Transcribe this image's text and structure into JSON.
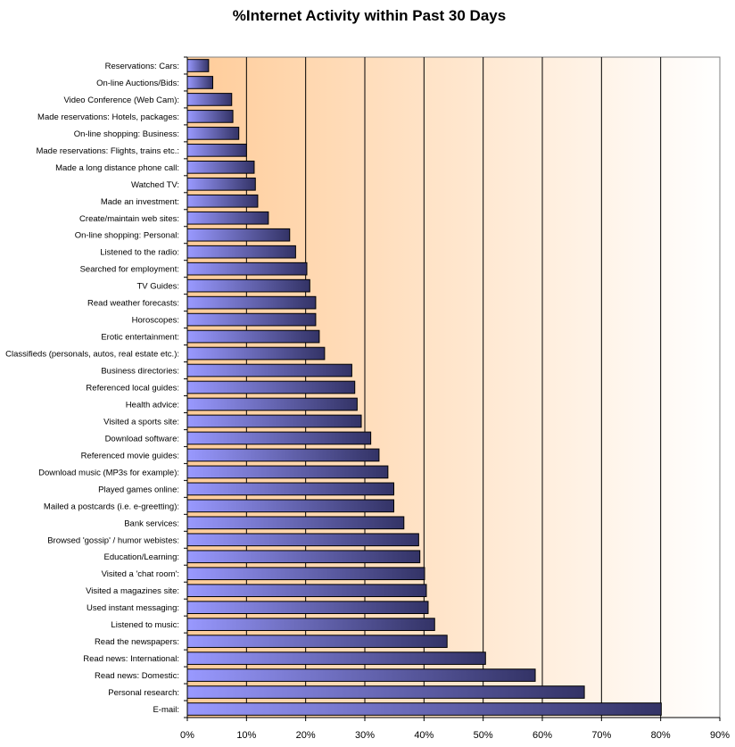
{
  "chart_data": {
    "type": "bar",
    "orientation": "horizontal",
    "title": "%Internet Activity within Past 30 Days",
    "xlabel": "",
    "ylabel": "",
    "xlim": [
      0,
      90
    ],
    "x_tick_labels": [
      "0%",
      "10%",
      "20%",
      "30%",
      "40%",
      "50%",
      "60%",
      "70%",
      "80%",
      "90%"
    ],
    "x_ticks": [
      0,
      10,
      20,
      30,
      40,
      50,
      60,
      70,
      80,
      90
    ],
    "grid": "vertical",
    "legend": "none",
    "colors": {
      "bar_start": "#9999ff",
      "bar_end": "#333366",
      "bar_border": "#000000",
      "plot_bg_start": "#ffcc99",
      "plot_bg_end": "#ffffff",
      "gridline": "#000000"
    },
    "categories": [
      "Reservations: Cars:",
      "On-line Auctions/Bids:",
      "Video Conference (Web Cam):",
      "Made reservations: Hotels, packages:",
      "On-line shopping: Business:",
      "Made reservations: Flights, trains etc.:",
      "Made a long distance phone call:",
      "Watched TV:",
      "Made an investment:",
      "Create/maintain web sites:",
      "On-line shopping: Personal:",
      "Listened to the radio:",
      "Searched for employment:",
      "TV Guides:",
      "Read weather forecasts:",
      "Horoscopes:",
      "Erotic entertainment:",
      "Classifieds (personals, autos, real estate etc.):",
      "Business directories:",
      "Referenced local guides:",
      "Health advice:",
      "Visited a sports site:",
      "Download software:",
      "Referenced movie guides:",
      "Download music (MP3s for example):",
      "Played games online:",
      "Mailed a postcards (i.e. e-greetting):",
      "Bank services:",
      "Browsed 'gossip' / humor webistes:",
      "Education/Learning:",
      "Visited a 'chat room':",
      "Visited a magazines site:",
      "Used instant messaging:",
      "Listened to music:",
      "Read the newspapers:",
      "Read news: International:",
      "Read news: Domestic:",
      "Personal research:",
      "E-mail:"
    ],
    "values": [
      3.6,
      4.3,
      7.5,
      7.7,
      8.7,
      10.0,
      11.3,
      11.5,
      11.9,
      13.7,
      17.3,
      18.3,
      20.2,
      20.7,
      21.7,
      21.7,
      22.3,
      23.2,
      27.8,
      28.3,
      28.7,
      29.4,
      31.0,
      32.4,
      33.9,
      34.9,
      34.9,
      36.6,
      39.1,
      39.3,
      40.1,
      40.4,
      40.7,
      41.8,
      43.9,
      50.4,
      58.8,
      67.1,
      80.1
    ]
  }
}
